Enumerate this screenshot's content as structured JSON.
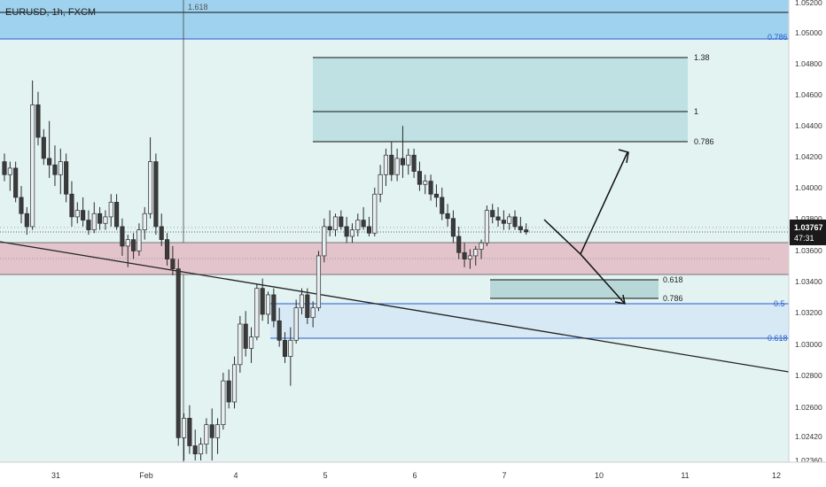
{
  "header": {
    "symbol": "EURUSD, 1h, FXCM"
  },
  "colors": {
    "background": "#e2f3f2",
    "bull": "#e9eef0",
    "bear": "#3b3b3b",
    "wick": "#2b2b2b",
    "supply_zone": "#e3c4cc",
    "top_zone": "#9fd2ee",
    "fib_box": "#bfe1e4",
    "demand_box": "#d6e9f4",
    "blue_line": "#2b5bd0"
  },
  "price_axis": {
    "labels": [
      "1.05200",
      "1.05000",
      "1.04800",
      "1.04600",
      "1.04400",
      "1.04200",
      "1.04000",
      "1.03800",
      "1.03600",
      "1.03400",
      "1.03200",
      "1.03000",
      "1.02800",
      "1.02600",
      "1.02420",
      "1.02360"
    ],
    "current_price": "1.03767",
    "countdown": "47:31"
  },
  "time_axis": {
    "labels": [
      "31",
      "Feb",
      "4",
      "5",
      "6",
      "7",
      "10",
      "11",
      "12"
    ]
  },
  "annotations": {
    "top_fib_label": "1.618",
    "top_blue_label": "0.786",
    "upper_fib": [
      "1.38",
      "1",
      "0.786"
    ],
    "lower_fib": [
      "0.618",
      "0.786"
    ],
    "demand_labels": [
      "0.5",
      "0.618"
    ]
  },
  "chart_data": {
    "type": "candlestick",
    "title": "EURUSD, 1h, FXCM",
    "ylim": [
      1.0236,
      1.0525
    ],
    "last_price": 1.03767,
    "candles": [
      [
        1.042,
        1.0425,
        1.0408,
        1.0412
      ],
      [
        1.0412,
        1.042,
        1.0402,
        1.0416
      ],
      [
        1.0416,
        1.042,
        1.0395,
        1.0398
      ],
      [
        1.0398,
        1.0405,
        1.0382,
        1.0388
      ],
      [
        1.0388,
        1.0392,
        1.0375,
        1.038
      ],
      [
        1.038,
        1.047,
        1.0378,
        1.0455
      ],
      [
        1.0455,
        1.0463,
        1.043,
        1.0435
      ],
      [
        1.0435,
        1.044,
        1.0418,
        1.0422
      ],
      [
        1.0422,
        1.0445,
        1.041,
        1.0418
      ],
      [
        1.0418,
        1.043,
        1.0405,
        1.0412
      ],
      [
        1.0412,
        1.0428,
        1.04,
        1.042
      ],
      [
        1.042,
        1.0425,
        1.0395,
        1.04
      ],
      [
        1.04,
        1.0408,
        1.038,
        1.0386
      ],
      [
        1.0386,
        1.0395,
        1.0382,
        1.039
      ],
      [
        1.039,
        1.0398,
        1.038,
        1.0384
      ],
      [
        1.0384,
        1.039,
        1.0375,
        1.0378
      ],
      [
        1.0378,
        1.0395,
        1.0376,
        1.0388
      ],
      [
        1.0388,
        1.0392,
        1.0378,
        1.0382
      ],
      [
        1.0382,
        1.039,
        1.0378,
        1.0386
      ],
      [
        1.0386,
        1.04,
        1.038,
        1.0395
      ],
      [
        1.0395,
        1.04,
        1.0378,
        1.038
      ],
      [
        1.038,
        1.0385,
        1.0362,
        1.0368
      ],
      [
        1.0368,
        1.0375,
        1.0355,
        1.0372
      ],
      [
        1.0372,
        1.0376,
        1.036,
        1.0365
      ],
      [
        1.0365,
        1.0382,
        1.0362,
        1.0378
      ],
      [
        1.0378,
        1.0392,
        1.0372,
        1.0388
      ],
      [
        1.0388,
        1.0435,
        1.0385,
        1.042
      ],
      [
        1.042,
        1.0425,
        1.0375,
        1.038
      ],
      [
        1.038,
        1.0388,
        1.0368,
        1.0372
      ],
      [
        1.0372,
        1.0376,
        1.0356,
        1.036
      ],
      [
        1.036,
        1.0368,
        1.035,
        1.0354
      ],
      [
        1.0354,
        1.036,
        1.0245,
        1.025
      ],
      [
        1.025,
        1.0265,
        1.0236,
        1.0262
      ],
      [
        1.0262,
        1.027,
        1.024,
        1.0245
      ],
      [
        1.0245,
        1.0255,
        1.0236,
        1.024
      ],
      [
        1.024,
        1.025,
        1.0236,
        1.0246
      ],
      [
        1.0246,
        1.0262,
        1.024,
        1.0258
      ],
      [
        1.0258,
        1.0268,
        1.0236,
        1.025
      ],
      [
        1.025,
        1.0262,
        1.024,
        1.0258
      ],
      [
        1.0258,
        1.029,
        1.0255,
        1.0285
      ],
      [
        1.0285,
        1.0292,
        1.0268,
        1.0272
      ],
      [
        1.0272,
        1.03,
        1.0268,
        1.0295
      ],
      [
        1.0295,
        1.0325,
        1.029,
        1.032
      ],
      [
        1.032,
        1.0328,
        1.03,
        1.0305
      ],
      [
        1.0305,
        1.0318,
        1.0296,
        1.0312
      ],
      [
        1.0312,
        1.0345,
        1.031,
        1.0342
      ],
      [
        1.0342,
        1.0348,
        1.0322,
        1.0326
      ],
      [
        1.0326,
        1.034,
        1.032,
        1.0338
      ],
      [
        1.0338,
        1.0342,
        1.0318,
        1.0322
      ],
      [
        1.0322,
        1.033,
        1.0306,
        1.031
      ],
      [
        1.031,
        1.0315,
        1.0296,
        1.03
      ],
      [
        1.03,
        1.0318,
        1.0282,
        1.031
      ],
      [
        1.031,
        1.0335,
        1.0308,
        1.033
      ],
      [
        1.033,
        1.0342,
        1.0326,
        1.0338
      ],
      [
        1.0338,
        1.0342,
        1.032,
        1.0324
      ],
      [
        1.0324,
        1.0334,
        1.0318,
        1.033
      ],
      [
        1.033,
        1.0365,
        1.0328,
        1.0362
      ],
      [
        1.0362,
        1.0385,
        1.0358,
        1.038
      ],
      [
        1.038,
        1.039,
        1.0374,
        1.0378
      ],
      [
        1.0378,
        1.0388,
        1.0374,
        1.0386
      ],
      [
        1.0386,
        1.039,
        1.0378,
        1.038
      ],
      [
        1.038,
        1.0386,
        1.037,
        1.0374
      ],
      [
        1.0374,
        1.0382,
        1.037,
        1.0378
      ],
      [
        1.0378,
        1.0388,
        1.0374,
        1.0384
      ],
      [
        1.0384,
        1.0392,
        1.0378,
        1.038
      ],
      [
        1.038,
        1.0386,
        1.0374,
        1.0376
      ],
      [
        1.0376,
        1.0404,
        1.0374,
        1.04
      ],
      [
        1.04,
        1.0418,
        1.0395,
        1.0412
      ],
      [
        1.0412,
        1.0428,
        1.0405,
        1.0424
      ],
      [
        1.0424,
        1.0432,
        1.0408,
        1.0412
      ],
      [
        1.0412,
        1.0428,
        1.0408,
        1.0422
      ],
      [
        1.0422,
        1.0442,
        1.041,
        1.0418
      ],
      [
        1.0418,
        1.0428,
        1.0412,
        1.0424
      ],
      [
        1.0424,
        1.0428,
        1.041,
        1.0414
      ],
      [
        1.0414,
        1.042,
        1.0402,
        1.0406
      ],
      [
        1.0406,
        1.0412,
        1.04,
        1.0408
      ],
      [
        1.0408,
        1.0412,
        1.0396,
        1.04
      ],
      [
        1.04,
        1.0406,
        1.0392,
        1.0398
      ],
      [
        1.0398,
        1.0404,
        1.0384,
        1.0388
      ],
      [
        1.0388,
        1.0394,
        1.038,
        1.0385
      ],
      [
        1.0385,
        1.039,
        1.037,
        1.0374
      ],
      [
        1.0374,
        1.038,
        1.036,
        1.0364
      ],
      [
        1.0364,
        1.037,
        1.0355,
        1.036
      ],
      [
        1.036,
        1.0366,
        1.0354,
        1.0362
      ],
      [
        1.0362,
        1.0368,
        1.0356,
        1.0366
      ],
      [
        1.0366,
        1.0372,
        1.036,
        1.037
      ],
      [
        1.037,
        1.0393,
        1.0368,
        1.039
      ],
      [
        1.039,
        1.0394,
        1.0382,
        1.0386
      ],
      [
        1.0386,
        1.0392,
        1.038,
        1.0384
      ],
      [
        1.0384,
        1.039,
        1.0378,
        1.0382
      ],
      [
        1.0382,
        1.0388,
        1.0378,
        1.0386
      ],
      [
        1.0386,
        1.039,
        1.0378,
        1.038
      ],
      [
        1.038,
        1.0386,
        1.0376,
        1.0378
      ],
      [
        1.0378,
        1.0382,
        1.0375,
        1.03767
      ]
    ]
  }
}
